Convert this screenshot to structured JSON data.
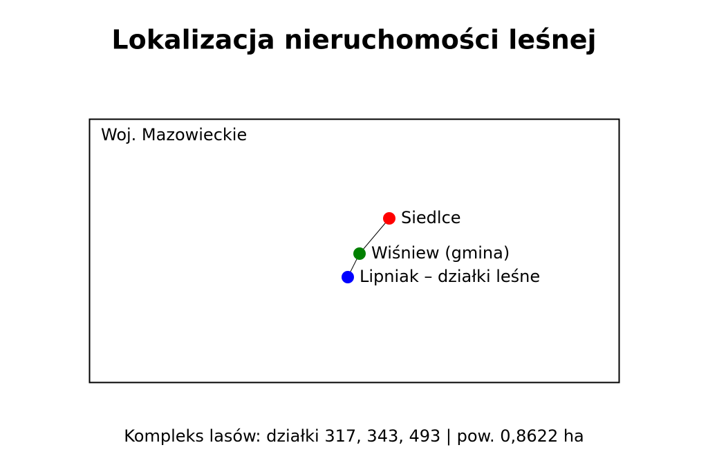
{
  "title": "Lokalizacja nieruchomości leśnej",
  "map": {
    "region": "Woj. Mazowieckie",
    "points": [
      {
        "label": "Siedlce",
        "color": "#ff0000"
      },
      {
        "label": "Wiśniew (gmina)",
        "color": "#008000"
      },
      {
        "label": "Lipniak – działki leśne",
        "color": "#0000ff"
      }
    ]
  },
  "footer": "Kompleks lasów: działki 317, 343, 493 | pow. 0,8622 ha"
}
